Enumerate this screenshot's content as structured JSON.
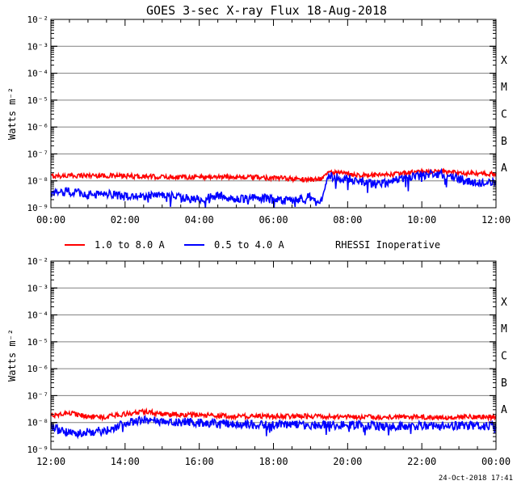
{
  "title": "GOES 3-sec X-ray Flux   18-Aug-2018",
  "legend": {
    "series1": "1.0 to 8.0 A",
    "series2": "0.5 to 4.0 A",
    "note": "RHESSI Inoperative"
  },
  "footer": "24-Oct-2018 17:41",
  "colors": {
    "series1": "#ff0000",
    "series2": "#0000ff",
    "grid": "#808080",
    "axis": "#000000"
  },
  "chart_data": [
    {
      "type": "line",
      "title": "GOES 3-sec X-ray Flux   18-Aug-2018",
      "ylabel": "Watts m⁻²",
      "yscale": "log",
      "ylim": [
        1e-09,
        0.01
      ],
      "xlim": [
        "00:00",
        "12:00"
      ],
      "xticks": [
        "00:00",
        "02:00",
        "04:00",
        "06:00",
        "08:00",
        "10:00",
        "12:00"
      ],
      "yticks": [
        "10⁻⁹",
        "10⁻⁸",
        "10⁻⁷",
        "10⁻⁶",
        "10⁻⁵",
        "10⁻⁴",
        "10⁻³",
        "10⁻²"
      ],
      "class_labels": [
        "A",
        "B",
        "C",
        "M",
        "X"
      ],
      "grid": true,
      "series": [
        {
          "name": "1.0 to 8.0 A",
          "x": [
            "00:00",
            "01:00",
            "02:00",
            "03:00",
            "04:00",
            "05:00",
            "06:00",
            "07:00",
            "07:15",
            "07:30",
            "08:00",
            "08:30",
            "09:00",
            "09:30",
            "10:00",
            "10:30",
            "11:00",
            "11:30",
            "12:00"
          ],
          "y": [
            1.5e-08,
            1.6e-08,
            1.5e-08,
            1.4e-08,
            1.4e-08,
            1.4e-08,
            1.3e-08,
            1.1e-08,
            1.2e-08,
            2.1e-08,
            1.8e-08,
            1.6e-08,
            1.6e-08,
            1.9e-08,
            2.2e-08,
            2.3e-08,
            1.9e-08,
            1.8e-08,
            1.8e-08
          ]
        },
        {
          "name": "0.5 to 4.0 A",
          "x": [
            "00:00",
            "00:30",
            "01:00",
            "01:30",
            "02:00",
            "03:00",
            "04:00",
            "04:30",
            "05:00",
            "05:30",
            "06:00",
            "06:30",
            "07:00",
            "07:15",
            "07:30",
            "08:00",
            "08:30",
            "09:00",
            "09:30",
            "10:00",
            "10:30",
            "11:00",
            "11:30",
            "12:00"
          ],
          "y": [
            3.5e-09,
            4e-09,
            3e-09,
            3.5e-09,
            2.5e-09,
            3e-09,
            2e-09,
            3e-09,
            2e-09,
            2.5e-09,
            2e-09,
            1.8e-09,
            2.5e-09,
            1.2e-09,
            1.5e-08,
            1.2e-08,
            9e-09,
            8e-09,
            1.2e-08,
            1.6e-08,
            1.8e-08,
            1.2e-08,
            8e-09,
            1e-08
          ]
        }
      ]
    },
    {
      "type": "line",
      "ylabel": "Watts m⁻²",
      "yscale": "log",
      "ylim": [
        1e-09,
        0.01
      ],
      "xlim": [
        "12:00",
        "00:00"
      ],
      "xticks": [
        "12:00",
        "14:00",
        "16:00",
        "18:00",
        "20:00",
        "22:00",
        "00:00"
      ],
      "yticks": [
        "10⁻⁹",
        "10⁻⁸",
        "10⁻⁷",
        "10⁻⁶",
        "10⁻⁵",
        "10⁻⁴",
        "10⁻³",
        "10⁻²"
      ],
      "class_labels": [
        "A",
        "B",
        "C",
        "M",
        "X"
      ],
      "grid": true,
      "series": [
        {
          "name": "1.0 to 8.0 A",
          "x": [
            "12:00",
            "12:30",
            "13:00",
            "13:30",
            "14:00",
            "14:30",
            "15:00",
            "16:00",
            "17:00",
            "18:00",
            "19:00",
            "20:00",
            "21:00",
            "22:00",
            "23:00",
            "00:00"
          ],
          "y": [
            1.8e-08,
            2.3e-08,
            1.6e-08,
            1.6e-08,
            2.1e-08,
            2.6e-08,
            2.1e-08,
            1.9e-08,
            1.7e-08,
            1.7e-08,
            1.7e-08,
            1.6e-08,
            1.6e-08,
            1.6e-08,
            1.6e-08,
            1.6e-08
          ]
        },
        {
          "name": "0.5 to 4.0 A",
          "x": [
            "12:00",
            "12:30",
            "13:00",
            "13:30",
            "14:00",
            "14:30",
            "15:00",
            "16:00",
            "17:00",
            "18:00",
            "19:00",
            "20:00",
            "21:00",
            "22:00",
            "23:00",
            "00:00"
          ],
          "y": [
            7e-09,
            4e-09,
            4.5e-09,
            5e-09,
            1e-08,
            1.3e-08,
            1.1e-08,
            1e-08,
            9e-09,
            8.5e-09,
            8e-09,
            8e-09,
            7.5e-09,
            7.5e-09,
            7.5e-09,
            7.5e-09
          ]
        }
      ]
    }
  ]
}
